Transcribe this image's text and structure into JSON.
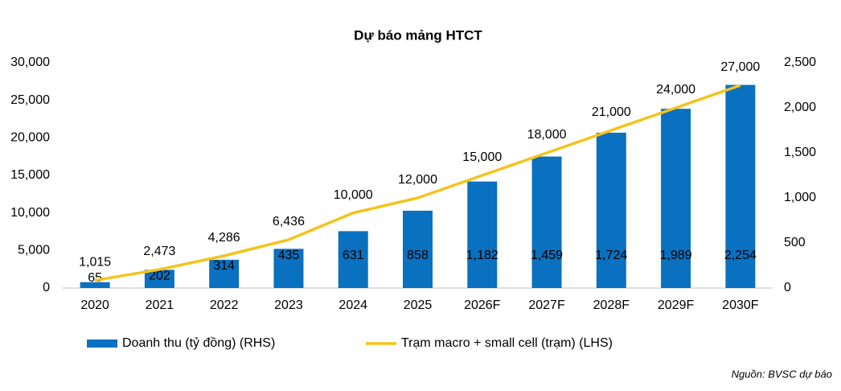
{
  "chart_data": {
    "type": "combo",
    "title": "Dự báo mảng HTCT",
    "categories": [
      "2020",
      "2021",
      "2022",
      "2023",
      "2024",
      "2025",
      "2026F",
      "2027F",
      "2028F",
      "2029F",
      "2030F"
    ],
    "series": [
      {
        "name": "Doanh thu (tỷ đồng) (RHS)",
        "type": "bar",
        "axis": "y2",
        "color": "#0a70c0",
        "values": [
          65,
          202,
          314,
          435,
          631,
          858,
          1182,
          1459,
          1724,
          1989,
          2254
        ],
        "value_labels": [
          "65",
          "202",
          "314",
          "435",
          "631",
          "858",
          "1,182",
          "1,459",
          "1,724",
          "1,989",
          "2,254"
        ]
      },
      {
        "name": "Trạm macro + small cell (trạm) (LHS)",
        "type": "line",
        "axis": "y",
        "color": "#f5c31c",
        "values": [
          1015,
          2473,
          4286,
          6436,
          10000,
          12000,
          15000,
          18000,
          21000,
          24000,
          27000
        ],
        "value_labels": [
          "1,015",
          "2,473",
          "4,286",
          "6,436",
          "10,000",
          "12,000",
          "15,000",
          "18,000",
          "21,000",
          "24,000",
          "27,000"
        ]
      }
    ],
    "ylim": [
      0,
      30000
    ],
    "yticks": [
      0,
      {
        "value": 5000,
        "label": "5,000"
      },
      {
        "value": 10000,
        "label": "10,000"
      },
      {
        "value": 15000,
        "label": "15,000"
      },
      {
        "value": 20000,
        "label": "20,000"
      },
      {
        "value": 25000,
        "label": "25,000"
      },
      {
        "value": 30000,
        "label": "30,000"
      }
    ],
    "y2lim": [
      0,
      2500
    ],
    "y2ticks": [
      0,
      500,
      {
        "value": 1000,
        "label": "1,000"
      },
      {
        "value": 1500,
        "label": "1,500"
      },
      {
        "value": 2000,
        "label": "2,000"
      },
      {
        "value": 2500,
        "label": "2,500"
      }
    ],
    "legend": "bottom",
    "source": "Nguồn: BVSC dự báo"
  }
}
